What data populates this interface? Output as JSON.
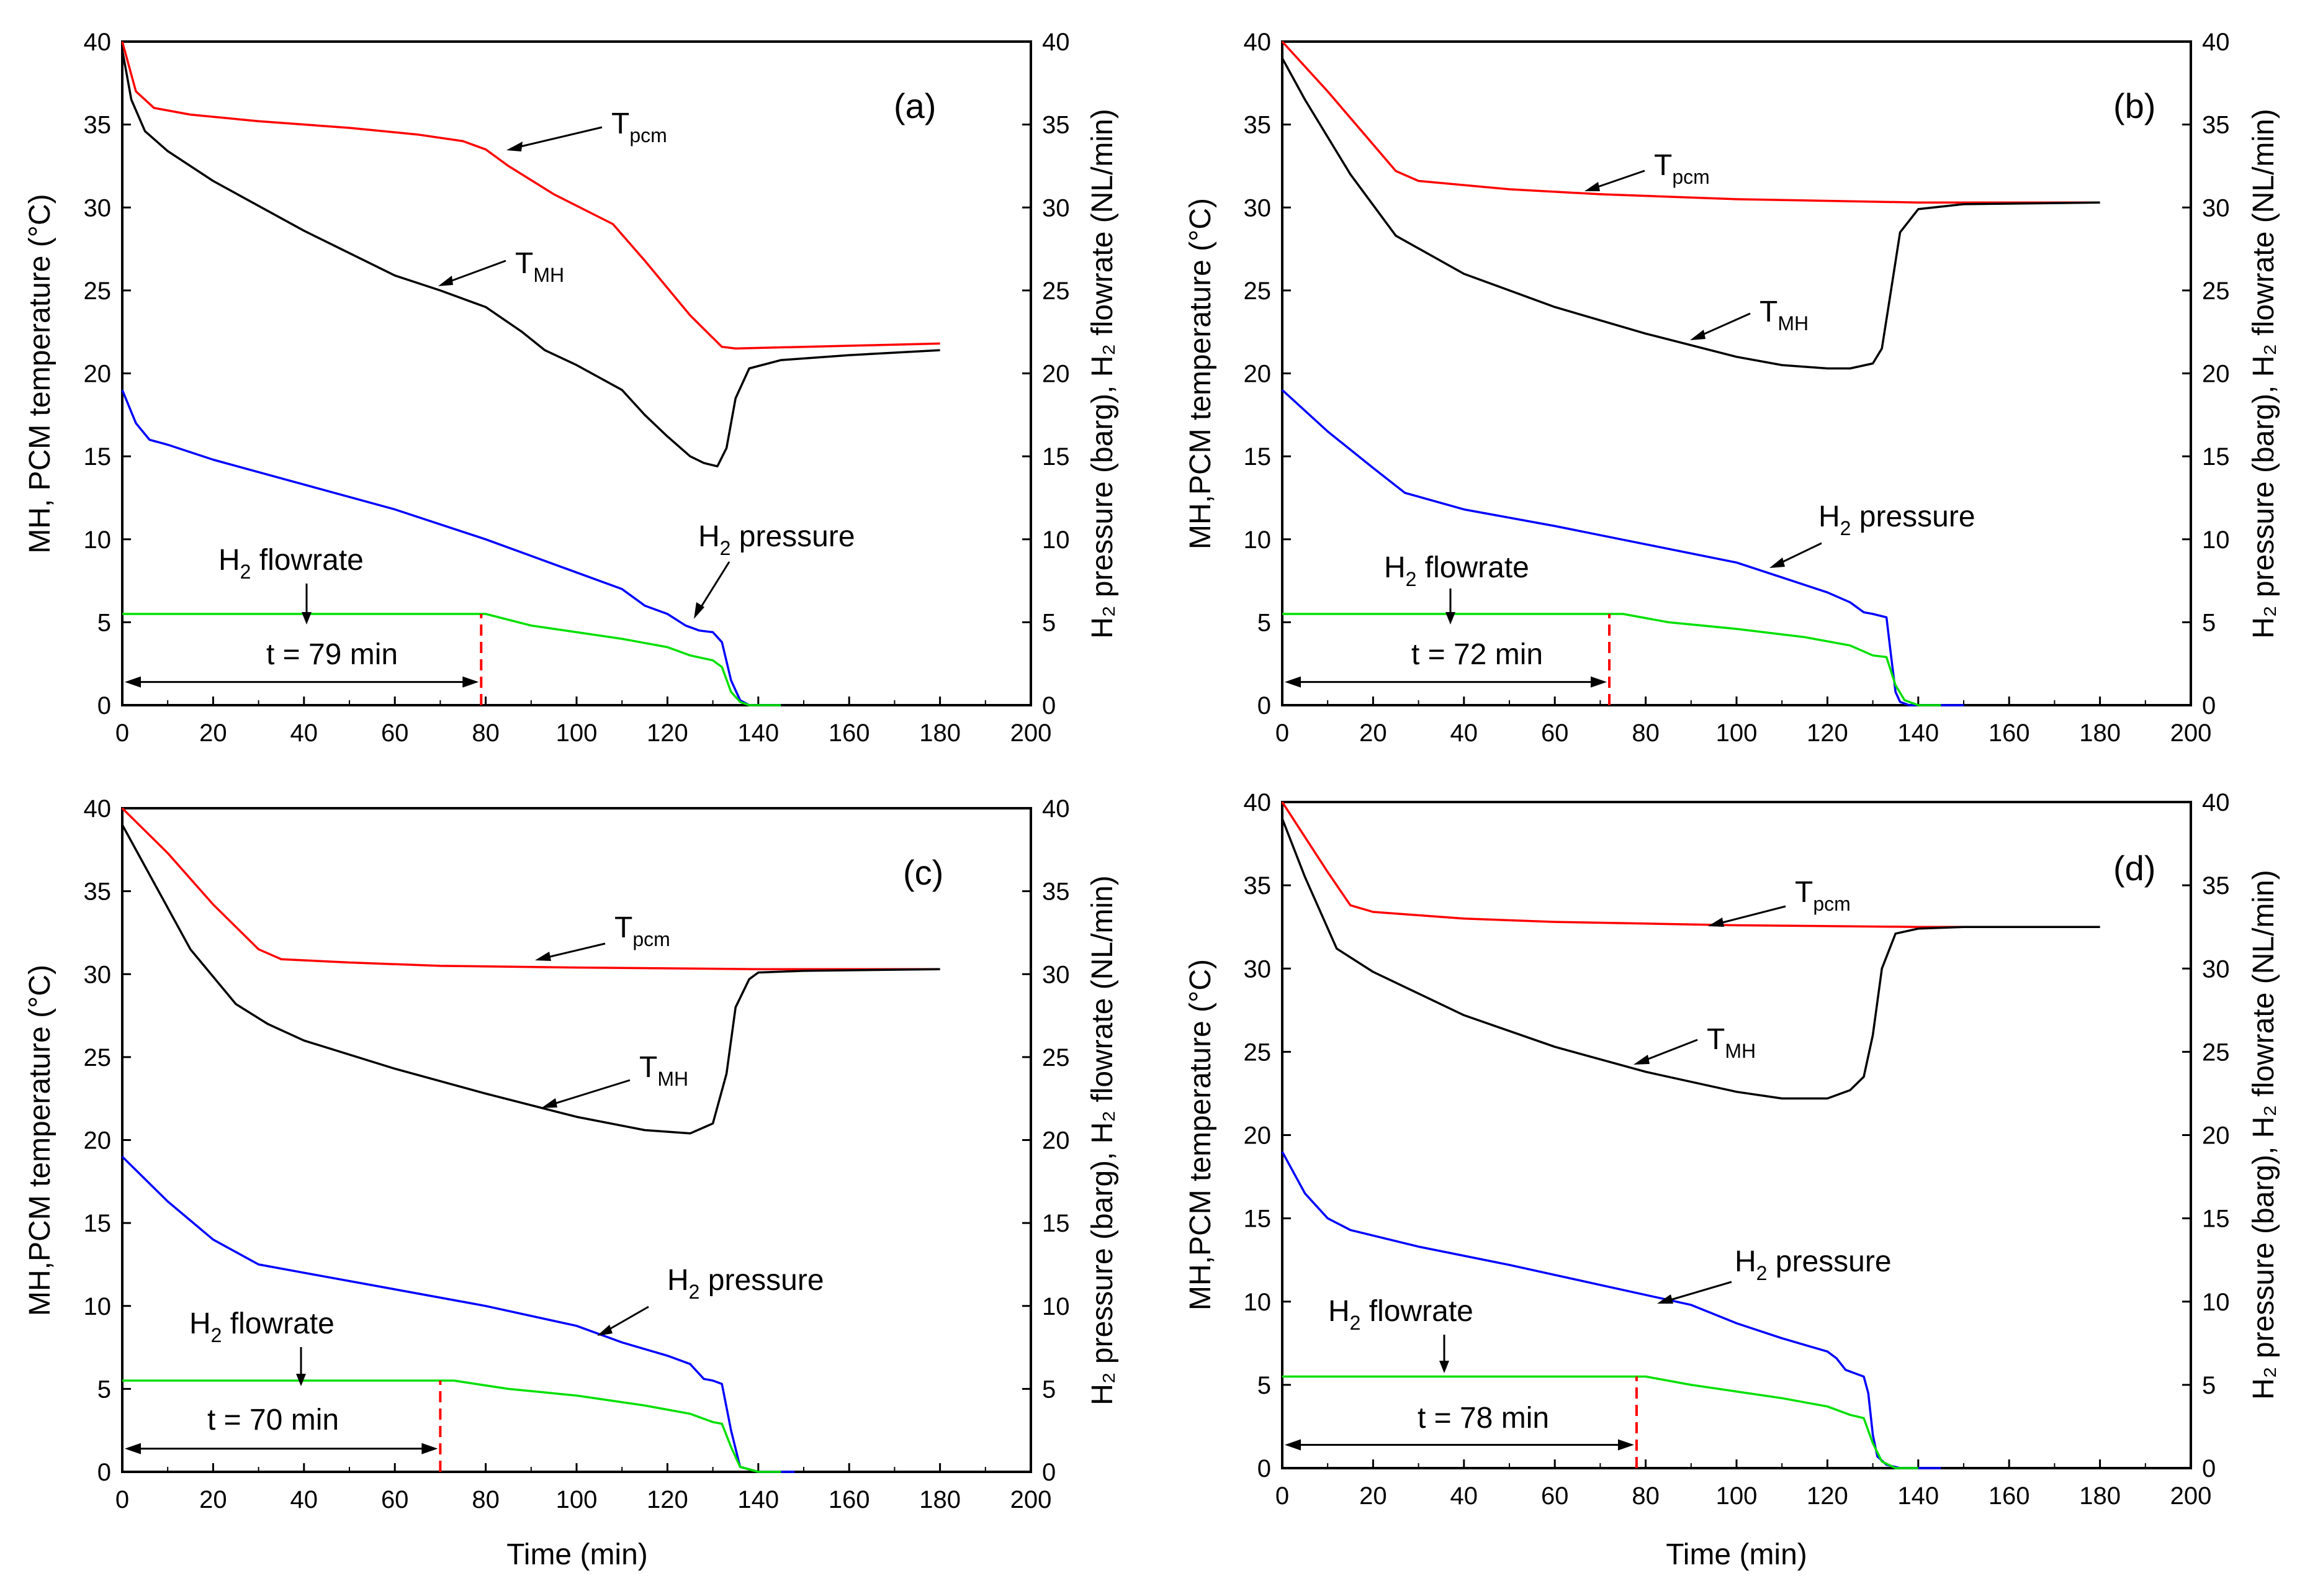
{
  "colors": {
    "t_pcm": "#ff0000",
    "t_mh": "#000000",
    "h2_pressure": "#0000ff",
    "h2_flowrate": "#00e000",
    "marker": "#ff0000"
  },
  "shared": {
    "xlabel": "Time (min)",
    "ylabel_left_a": "MH, PCM temperature (°C)",
    "ylabel_left": "MH,PCM temperature (°C)",
    "ylabel_right": "H₂ pressure (barg), H₂ flowrate (NL/min)",
    "x_ticks": [
      "0",
      "20",
      "40",
      "60",
      "80",
      "100",
      "120",
      "140",
      "160",
      "180",
      "200"
    ],
    "y_ticks": [
      "0",
      "5",
      "10",
      "15",
      "20",
      "25",
      "30",
      "35",
      "40"
    ],
    "label_t_main": "T",
    "label_pcm_sub": "pcm",
    "label_mh_sub": "MH",
    "label_h2_main": "H",
    "label_h2_sub": "2",
    "label_pressure_rest": " pressure",
    "label_flowrate_rest": " flowrate"
  },
  "chart_data": [
    {
      "type": "line",
      "panel": "(a)",
      "xlim": [
        0,
        200
      ],
      "ylim": [
        0,
        40
      ],
      "y2lim": [
        0,
        40
      ],
      "xlabel": "Time (min)",
      "ylabel": "MH, PCM temperature (°C)",
      "y2label": "H2 pressure (barg), H2 flowrate (NL/min)",
      "marker_time": 79,
      "marker_label": "t = 79 min",
      "series": [
        {
          "name": "T_pcm",
          "x": [
            0,
            3,
            7,
            15,
            30,
            50,
            65,
            75,
            80,
            85,
            95,
            108,
            115,
            125,
            132,
            135,
            150,
            165,
            180
          ],
          "y": [
            40,
            37,
            36,
            35.6,
            35.2,
            34.8,
            34.4,
            34,
            33.5,
            32.5,
            30.8,
            29,
            26.8,
            23.5,
            21.6,
            21.5,
            21.6,
            21.7,
            21.8
          ]
        },
        {
          "name": "T_MH",
          "x": [
            0,
            2,
            5,
            10,
            20,
            40,
            60,
            70,
            80,
            88,
            93,
            100,
            110,
            115,
            120,
            125,
            128,
            131,
            133,
            135,
            138,
            145,
            160,
            180
          ],
          "y": [
            39.5,
            36.5,
            34.6,
            33.4,
            31.6,
            28.6,
            25.9,
            25,
            24,
            22.5,
            21.4,
            20.5,
            19,
            17.5,
            16.2,
            15,
            14.6,
            14.4,
            15.5,
            18.5,
            20.3,
            20.8,
            21.1,
            21.4
          ]
        },
        {
          "name": "H2 pressure",
          "x": [
            0,
            3,
            6,
            10,
            20,
            40,
            60,
            80,
            90,
            100,
            110,
            115,
            120,
            124,
            127,
            130,
            132,
            134,
            136,
            138,
            145
          ],
          "y": [
            19,
            17,
            16,
            15.7,
            14.8,
            13.3,
            11.8,
            10,
            9,
            8,
            7,
            6,
            5.5,
            4.8,
            4.5,
            4.4,
            3.8,
            1.5,
            0.3,
            0,
            0
          ]
        },
        {
          "name": "H2 flowrate",
          "x": [
            0,
            79,
            80,
            90,
            100,
            110,
            120,
            125,
            130,
            132,
            134,
            136,
            138,
            145
          ],
          "y": [
            5.5,
            5.5,
            5.5,
            4.8,
            4.4,
            4,
            3.5,
            3.0,
            2.7,
            2.3,
            0.8,
            0.2,
            0,
            0
          ]
        }
      ]
    },
    {
      "type": "line",
      "panel": "(b)",
      "xlim": [
        0,
        200
      ],
      "ylim": [
        0,
        40
      ],
      "y2lim": [
        0,
        40
      ],
      "xlabel": "Time (min)",
      "ylabel": "MH,PCM temperature (°C)",
      "y2label": "H2 pressure (barg), H2 flowrate (NL/min)",
      "marker_time": 72,
      "marker_label": "t = 72 min",
      "series": [
        {
          "name": "T_pcm",
          "x": [
            0,
            10,
            20,
            25,
            30,
            50,
            70,
            100,
            140,
            180
          ],
          "y": [
            40,
            37,
            33.8,
            32.2,
            31.6,
            31.1,
            30.8,
            30.5,
            30.3,
            30.3
          ]
        },
        {
          "name": "T_MH",
          "x": [
            0,
            5,
            15,
            25,
            40,
            60,
            80,
            100,
            110,
            120,
            125,
            130,
            132,
            134,
            136,
            140,
            150,
            180
          ],
          "y": [
            39,
            36.5,
            32,
            28.3,
            26,
            24,
            22.4,
            21,
            20.5,
            20.3,
            20.3,
            20.6,
            21.5,
            25,
            28.5,
            29.9,
            30.2,
            30.3
          ]
        },
        {
          "name": "H2 pressure",
          "x": [
            0,
            10,
            20,
            27,
            40,
            60,
            80,
            100,
            110,
            120,
            125,
            128,
            130,
            133,
            134,
            135,
            136,
            138,
            145,
            150
          ],
          "y": [
            19,
            16.5,
            14.3,
            12.8,
            11.8,
            10.8,
            9.7,
            8.6,
            7.7,
            6.8,
            6.2,
            5.6,
            5.5,
            5.3,
            3,
            0.8,
            0.2,
            0,
            0,
            0
          ]
        },
        {
          "name": "H2 flowrate",
          "x": [
            0,
            72,
            75,
            85,
            100,
            115,
            125,
            130,
            133,
            135,
            137,
            140,
            145
          ],
          "y": [
            5.5,
            5.5,
            5.5,
            5,
            4.6,
            4.1,
            3.6,
            3,
            2.9,
            1.2,
            0.3,
            0,
            0
          ]
        }
      ]
    },
    {
      "type": "line",
      "panel": "(c)",
      "xlim": [
        0,
        200
      ],
      "ylim": [
        0,
        40
      ],
      "y2lim": [
        0,
        40
      ],
      "xlabel": "Time (min)",
      "ylabel": "MH,PCM temperature (°C)",
      "y2label": "H2 pressure (barg), H2 flowrate (NL/min)",
      "marker_time": 70,
      "marker_label": "t = 70 min",
      "series": [
        {
          "name": "T_pcm",
          "x": [
            0,
            10,
            20,
            30,
            35,
            50,
            70,
            100,
            140,
            180
          ],
          "y": [
            40,
            37.3,
            34.2,
            31.5,
            30.9,
            30.7,
            30.5,
            30.4,
            30.3,
            30.3
          ]
        },
        {
          "name": "T_MH",
          "x": [
            0,
            5,
            15,
            25,
            32,
            40,
            60,
            80,
            100,
            115,
            125,
            130,
            133,
            135,
            138,
            140,
            150,
            180
          ],
          "y": [
            39,
            36.5,
            31.5,
            28.2,
            27,
            26,
            24.3,
            22.8,
            21.4,
            20.6,
            20.4,
            21,
            24,
            28,
            29.7,
            30.1,
            30.2,
            30.3
          ]
        },
        {
          "name": "H2 pressure",
          "x": [
            0,
            10,
            20,
            30,
            40,
            60,
            80,
            100,
            110,
            120,
            125,
            128,
            130,
            132,
            134,
            136,
            140,
            148
          ],
          "y": [
            19,
            16.3,
            14,
            12.5,
            12,
            11,
            10,
            8.8,
            7.8,
            7,
            6.5,
            5.6,
            5.5,
            5.3,
            2.5,
            0.3,
            0,
            0
          ]
        },
        {
          "name": "H2 flowrate",
          "x": [
            0,
            70,
            73,
            85,
            100,
            115,
            125,
            130,
            132,
            134,
            136,
            140,
            145
          ],
          "y": [
            5.5,
            5.5,
            5.5,
            5,
            4.6,
            4,
            3.5,
            3,
            2.9,
            1.5,
            0.3,
            0,
            0
          ]
        }
      ]
    },
    {
      "type": "line",
      "panel": "(d)",
      "xlim": [
        0,
        200
      ],
      "ylim": [
        0,
        40
      ],
      "y2lim": [
        0,
        40
      ],
      "xlabel": "Time (min)",
      "ylabel": "MH,PCM temperature (°C)",
      "y2label": "H2 pressure (barg), H2 flowrate (NL/min)",
      "marker_time": 78,
      "marker_label": "t = 78 min",
      "series": [
        {
          "name": "T_pcm",
          "x": [
            0,
            10,
            15,
            20,
            40,
            60,
            80,
            100,
            140,
            180
          ],
          "y": [
            40,
            35.8,
            33.8,
            33.4,
            33,
            32.8,
            32.7,
            32.6,
            32.5,
            32.5
          ]
        },
        {
          "name": "T_MH",
          "x": [
            0,
            5,
            12,
            20,
            40,
            60,
            80,
            100,
            110,
            120,
            125,
            128,
            130,
            132,
            135,
            140,
            150,
            180
          ],
          "y": [
            39,
            35.5,
            31.2,
            29.8,
            27.2,
            25.3,
            23.8,
            22.6,
            22.2,
            22.2,
            22.7,
            23.5,
            26,
            30,
            32.1,
            32.4,
            32.5,
            32.5
          ]
        },
        {
          "name": "H2 pressure",
          "x": [
            0,
            5,
            10,
            15,
            30,
            50,
            70,
            90,
            100,
            110,
            120,
            122,
            124,
            126,
            128,
            129,
            130,
            131,
            133,
            136,
            140,
            145
          ],
          "y": [
            19,
            16.5,
            15,
            14.3,
            13.3,
            12.2,
            11,
            9.8,
            8.7,
            7.8,
            7,
            6.6,
            5.9,
            5.7,
            5.5,
            4.5,
            2,
            0.7,
            0.2,
            0,
            0,
            0
          ]
        },
        {
          "name": "H2 flowrate",
          "x": [
            0,
            78,
            80,
            90,
            100,
            110,
            120,
            125,
            128,
            130,
            132,
            135,
            140
          ],
          "y": [
            5.5,
            5.5,
            5.5,
            5,
            4.6,
            4.2,
            3.7,
            3.2,
            3,
            1.5,
            0.4,
            0,
            0
          ]
        }
      ]
    }
  ]
}
